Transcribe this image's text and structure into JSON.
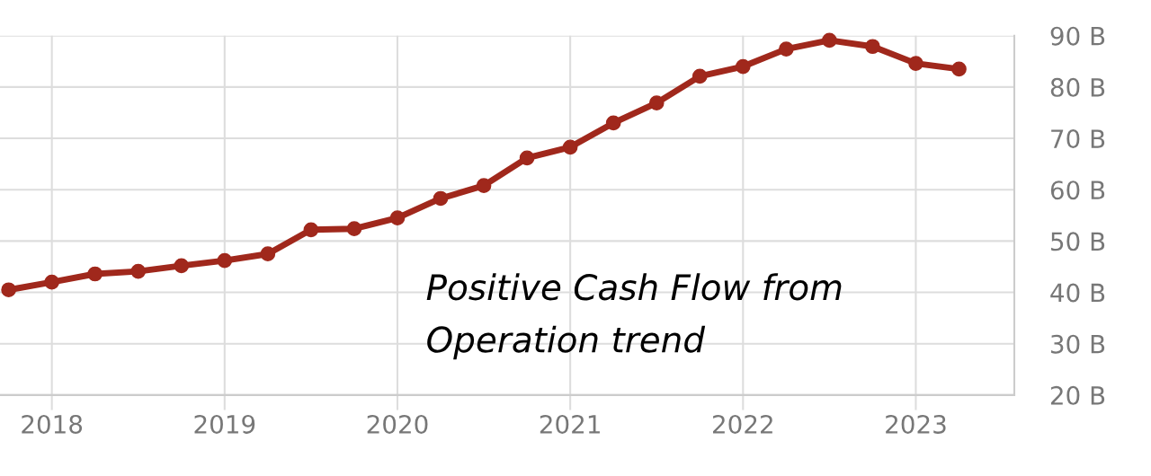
{
  "chart_data": {
    "type": "line",
    "x": [
      2017.75,
      2018.0,
      2018.25,
      2018.5,
      2018.75,
      2019.0,
      2019.25,
      2019.5,
      2019.75,
      2020.0,
      2020.25,
      2020.5,
      2020.75,
      2021.0,
      2021.25,
      2021.5,
      2021.75,
      2022.0,
      2022.25,
      2022.5,
      2022.75,
      2023.0,
      2023.25
    ],
    "series": [
      {
        "color": "#a0281c",
        "values": [
          40.5,
          42.0,
          43.6,
          44.1,
          45.2,
          46.2,
          47.5,
          52.2,
          52.4,
          54.5,
          58.3,
          60.8,
          66.2,
          68.3,
          73.0,
          76.9,
          82.1,
          84.0,
          87.4,
          89.1,
          87.9,
          84.6,
          83.5
        ]
      }
    ],
    "xlim": [
      2017.7,
      2023.57
    ],
    "xticks": [
      2018,
      2019,
      2020,
      2021,
      2022,
      2023
    ],
    "ylim": [
      20,
      90
    ],
    "yticks": [
      {
        "value": 20,
        "label": "20 B"
      },
      {
        "value": 30,
        "label": "30 B"
      },
      {
        "value": 40,
        "label": "40 B"
      },
      {
        "value": 50,
        "label": "50 B"
      },
      {
        "value": 60,
        "label": "60 B"
      },
      {
        "value": 70,
        "label": "70 B"
      },
      {
        "value": 80,
        "label": "80 B"
      },
      {
        "value": 90,
        "label": "90 B"
      }
    ],
    "grid": true,
    "marker": "circle",
    "line_style": "solid",
    "annotations": [
      "Positive Cash Flow from\nOperation trend"
    ]
  }
}
